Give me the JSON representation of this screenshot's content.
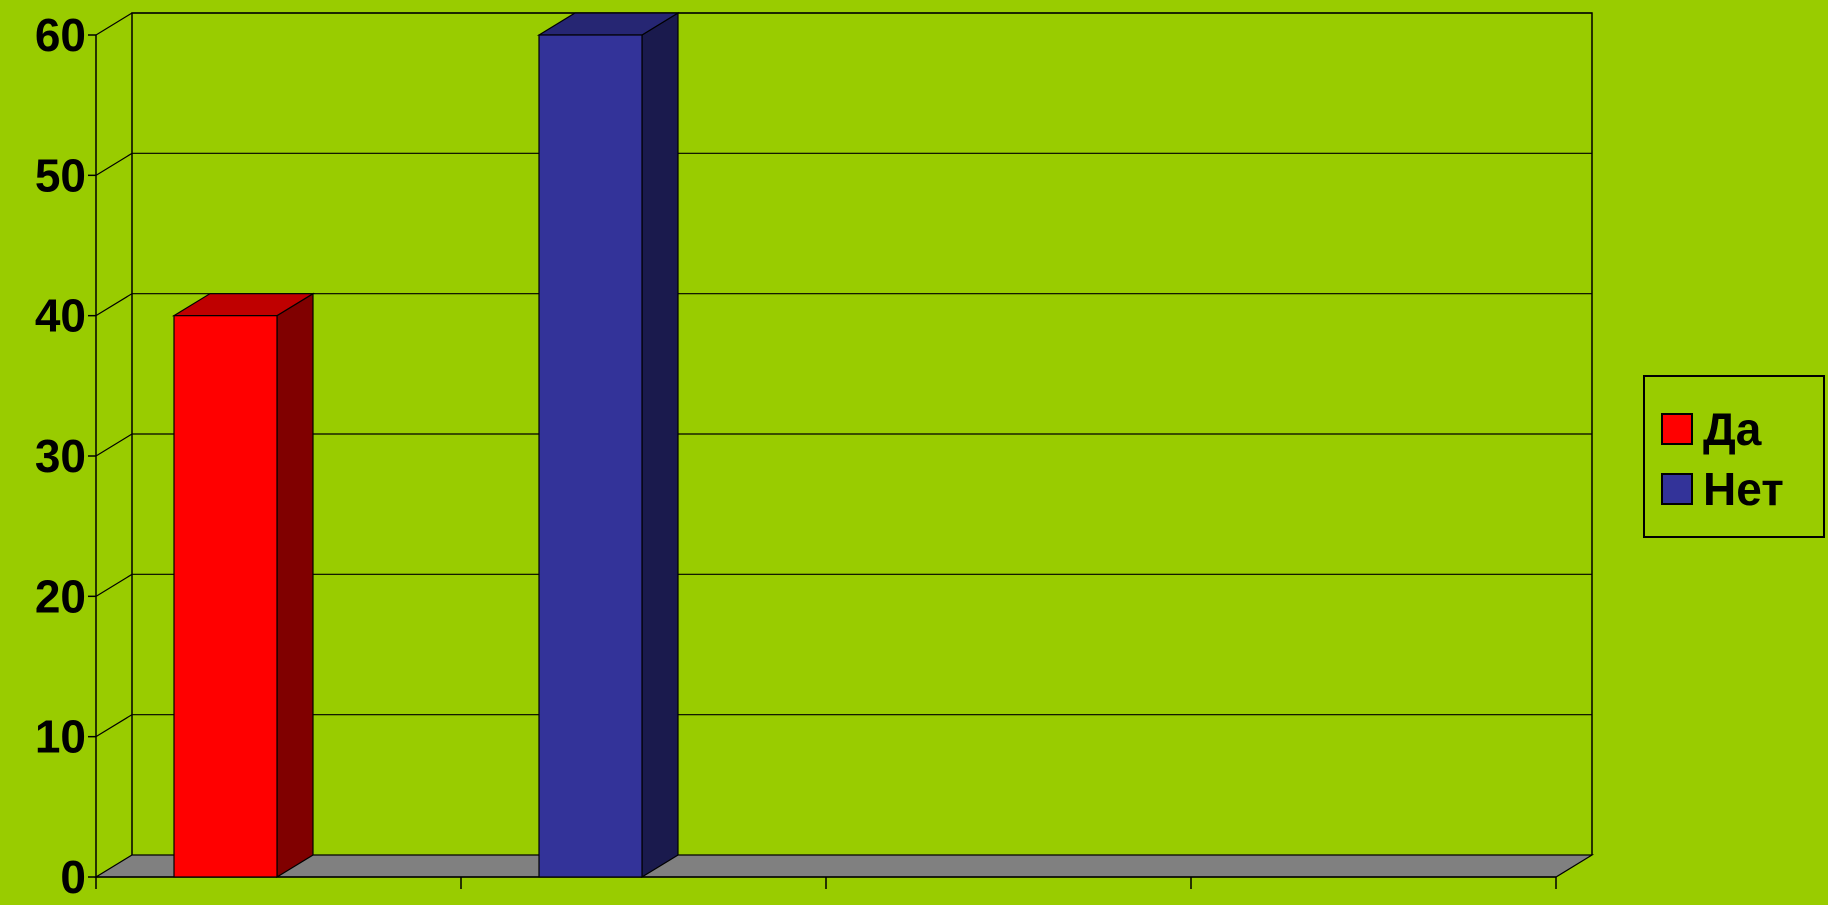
{
  "chart_data": {
    "type": "bar",
    "categories": [
      "",
      "",
      "",
      ""
    ],
    "series": [
      {
        "name": "Да",
        "values": [
          40,
          null,
          null,
          null
        ],
        "color": "#ff0000"
      },
      {
        "name": "Нет",
        "values": [
          null,
          60,
          null,
          null
        ],
        "color": "#333399"
      }
    ],
    "ylim": [
      0,
      60
    ],
    "yticks": [
      "0",
      "10",
      "20",
      "30",
      "40",
      "50",
      "60"
    ],
    "title": "",
    "xlabel": "",
    "ylabel": "",
    "grid": true,
    "legend_position": "right",
    "background_color": "#99cc00",
    "floor_color": "#808080"
  }
}
